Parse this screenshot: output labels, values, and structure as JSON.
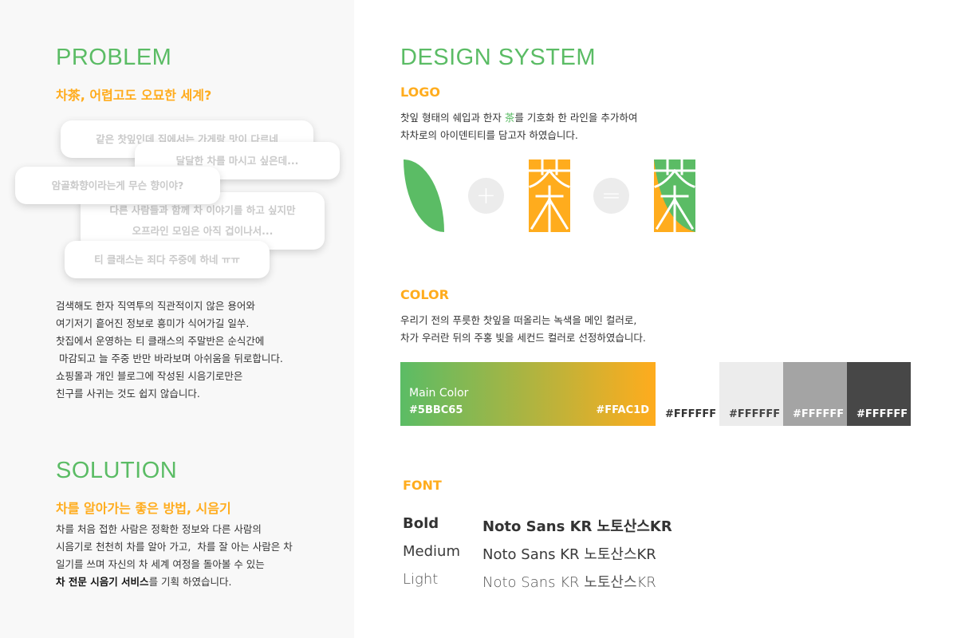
{
  "problem": {
    "title": "PROBLEM",
    "subtitle": "차茶, 어렵고도 오묘한 세계?",
    "bubbles": [
      "같은 찻잎인데 집에서는 가게랑 맛이 다르네",
      "달달한 차를 마시고 싶은데...",
      "암골화향이라는게 무슨 향이야?",
      "다른 사람들과 함께 차 이야기를 하고 싶지만",
      "오프라인 모임은 아직 겁이나서...",
      "티 클래스는 죄다 주중에 하네 ㅠㅠ"
    ],
    "lines": [
      "검색해도 한자 직역투의 직관적이지 않은 용어와",
      "여기저기 흩어진 정보로 흥미가 식어가길 일쑤.",
      "찻집에서 운영하는 티 클래스의 주말반은 순식간에",
      " 마감되고 늘 주중 반만 바라보며 아쉬움을 뒤로합니다.",
      "쇼핑몰과 개인 블로그에 작성된 시음기로만은",
      "친구를 사귀는 것도 쉽지 않습니다."
    ]
  },
  "solution": {
    "title": "SOLUTION",
    "subtitle": "차를 알아가는 좋은 방법, 시음기",
    "lines": [
      "차를 처음 접한 사람은 정확한 정보와 다른 사람의",
      "시음기로 천천히 차를 알아 가고,  차를 잘 아는 사람은 차",
      "일기를 쓰며 자신의 차 세계 여정을 돌아볼 수 있는"
    ],
    "last_bold": "차 전문 시음기 서비스",
    "last_rest": "를 기획 하였습니다."
  },
  "design": {
    "title": "DESIGN SYSTEM",
    "logo": {
      "heading": "LOGO",
      "line1_pre": "찻잎 형태의 쉐입과 한자 ",
      "line1_char": "茶",
      "line1_post": "를 기호화 한 라인을 추가하여",
      "line2": "차차로의 아이덴티티를 담고자 하였습니다.",
      "plus": "+",
      "equals": "="
    },
    "color": {
      "heading": "COLOR",
      "lines": [
        "우리기 전의 푸릇한 찻잎을 떠올리는 녹색을 메인 컬러로,",
        "차가 우러란 뒤의 주홍 빛을 세컨드 컬러로 선정하였습니다."
      ],
      "main_label": "Main Color",
      "main_start": "#5BBC65",
      "main_end": "#FFAC1D",
      "swatches": [
        {
          "label": "#FFFFFF",
          "bg": "#ffffff",
          "fg": "#333333"
        },
        {
          "label": "#FFFFFF",
          "bg": "#ececec",
          "fg": "#444444"
        },
        {
          "label": "#FFFFFF",
          "bg": "#a4a4a4",
          "fg": "#ffffff"
        },
        {
          "label": "#FFFFFF",
          "bg": "#474747",
          "fg": "#ffffff"
        }
      ]
    },
    "font": {
      "heading": "FONT",
      "rows": [
        {
          "weight": "Bold",
          "sample": "Noto Sans KR 노토산스KR"
        },
        {
          "weight": "Medium",
          "sample": "Noto Sans KR 노토산스KR"
        },
        {
          "weight": "Light",
          "sample": "Noto Sans KR 노토산스KR"
        }
      ]
    }
  },
  "colors": {
    "green": "#5bbc65",
    "orange": "#ffac1d"
  }
}
